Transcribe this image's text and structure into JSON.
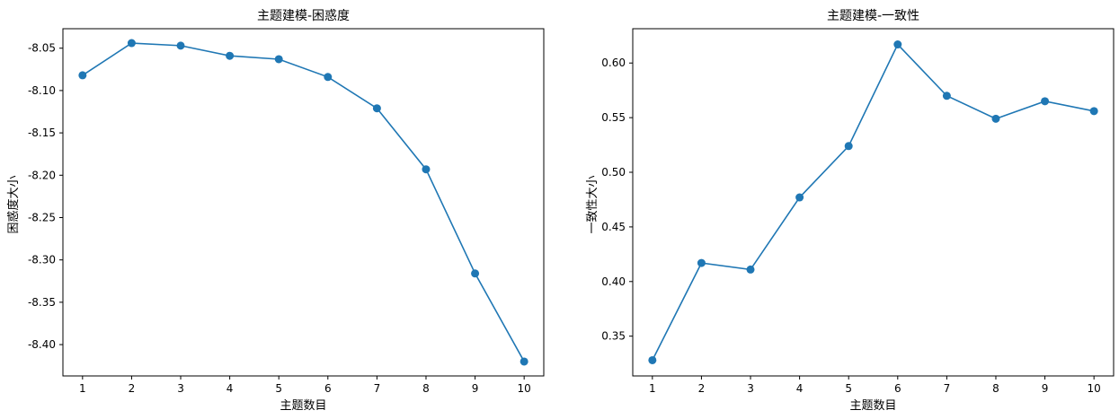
{
  "chart_data": [
    {
      "type": "line",
      "title": "主题建模-困惑度",
      "xlabel": "主题数目",
      "ylabel": "困惑度大小",
      "x": [
        1,
        2,
        3,
        4,
        5,
        6,
        7,
        8,
        9,
        10
      ],
      "series": [
        {
          "values": [
            -8.082,
            -8.044,
            -8.047,
            -8.059,
            -8.063,
            -8.084,
            -8.121,
            -8.193,
            -8.316,
            -8.42
          ]
        }
      ],
      "xlim": [
        0.6,
        10.4
      ],
      "ylim": [
        -8.437,
        -8.027
      ],
      "xticks": [
        "1",
        "2",
        "3",
        "4",
        "5",
        "6",
        "7",
        "8",
        "9",
        "10"
      ],
      "yticks": [
        "-8.05",
        "-8.10",
        "-8.15",
        "-8.20",
        "-8.25",
        "-8.30",
        "-8.35",
        "-8.40"
      ],
      "ytick_values": [
        -8.05,
        -8.1,
        -8.15,
        -8.2,
        -8.25,
        -8.3,
        -8.35,
        -8.4
      ],
      "marker": "circle",
      "color": "#1f77b4",
      "grid": false,
      "legend": "none"
    },
    {
      "type": "line",
      "title": "主题建模-一致性",
      "xlabel": "主题数目",
      "ylabel": "一致性大小",
      "x": [
        1,
        2,
        3,
        4,
        5,
        6,
        7,
        8,
        9,
        10
      ],
      "series": [
        {
          "values": [
            0.328,
            0.417,
            0.411,
            0.477,
            0.524,
            0.617,
            0.57,
            0.549,
            0.565,
            0.556
          ]
        }
      ],
      "xlim": [
        0.6,
        10.4
      ],
      "ylim": [
        0.3136,
        0.6314
      ],
      "xticks": [
        "1",
        "2",
        "3",
        "4",
        "5",
        "6",
        "7",
        "8",
        "9",
        "10"
      ],
      "yticks": [
        "0.35",
        "0.40",
        "0.45",
        "0.50",
        "0.55",
        "0.60"
      ],
      "ytick_values": [
        0.35,
        0.4,
        0.45,
        0.5,
        0.55,
        0.6
      ],
      "marker": "circle",
      "color": "#1f77b4",
      "grid": false,
      "legend": "none"
    }
  ]
}
